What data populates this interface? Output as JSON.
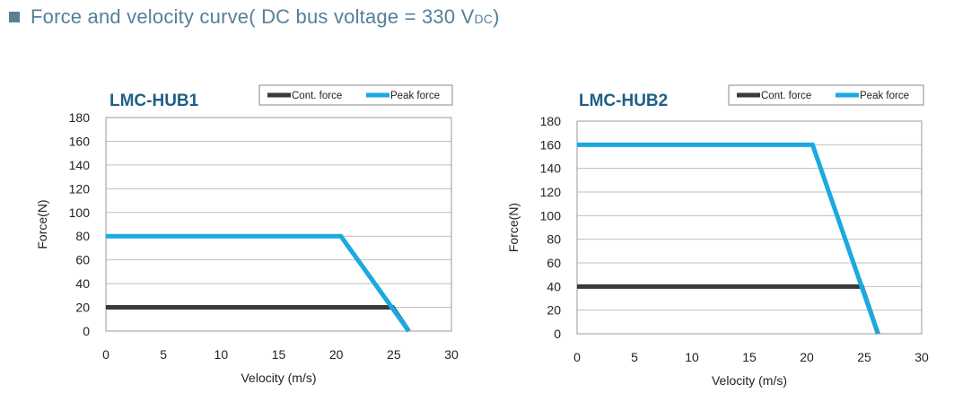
{
  "header": {
    "title_main": "Force and velocity curve( DC bus voltage = 330 V",
    "title_sub": "DC",
    "title_end": ")"
  },
  "colors": {
    "accent": "#5b7f93",
    "title_blue": "#1f5f87",
    "cont_force": "#3a3a3a",
    "peak_force": "#1aa9e1",
    "grid": "#bfbfbf"
  },
  "chart_data": [
    {
      "type": "line",
      "title": "LMC-HUB1",
      "xlabel": "Velocity (m/s)",
      "ylabel": "Force(N)",
      "xlim": [
        0,
        30
      ],
      "ylim": [
        0,
        180
      ],
      "xticks": [
        0,
        5,
        10,
        15,
        20,
        25,
        30
      ],
      "yticks": [
        0,
        20,
        40,
        60,
        80,
        100,
        120,
        140,
        160,
        180
      ],
      "xtick_labels": [
        "0",
        "5",
        "10",
        "15",
        "20",
        "25",
        "30"
      ],
      "ytick_labels": [
        "0",
        "20",
        "40",
        "60",
        "80",
        "100",
        "120",
        "140",
        "160",
        "180"
      ],
      "grid": true,
      "legend_position": "top-right",
      "series": [
        {
          "name": "Cont. force",
          "color": "#3a3a3a",
          "x": [
            0,
            24.9,
            26.3
          ],
          "y": [
            20,
            20,
            0
          ]
        },
        {
          "name": "Peak force",
          "color": "#1aa9e1",
          "x": [
            0,
            20.4,
            26.3
          ],
          "y": [
            80,
            80,
            0
          ]
        }
      ]
    },
    {
      "type": "line",
      "title": "LMC-HUB2",
      "xlabel": "Velocity (m/s)",
      "ylabel": "Force(N)",
      "xlim": [
        0,
        30
      ],
      "ylim": [
        0,
        180
      ],
      "xticks": [
        0,
        5,
        10,
        15,
        20,
        25,
        30
      ],
      "yticks": [
        0,
        20,
        40,
        60,
        80,
        100,
        120,
        140,
        160,
        180
      ],
      "xtick_labels": [
        "0",
        "5",
        "10",
        "15",
        "20",
        "25",
        "30"
      ],
      "ytick_labels": [
        "0",
        "20",
        "40",
        "60",
        "80",
        "100",
        "120",
        "140",
        "160",
        "180"
      ],
      "grid": true,
      "legend_position": "top-right",
      "series": [
        {
          "name": "Cont. force",
          "color": "#3a3a3a",
          "x": [
            0,
            24.8,
            26.2
          ],
          "y": [
            40,
            40,
            0
          ]
        },
        {
          "name": "Peak force",
          "color": "#1aa9e1",
          "x": [
            0,
            20.5,
            26.2
          ],
          "y": [
            160,
            160,
            0
          ]
        }
      ]
    }
  ]
}
